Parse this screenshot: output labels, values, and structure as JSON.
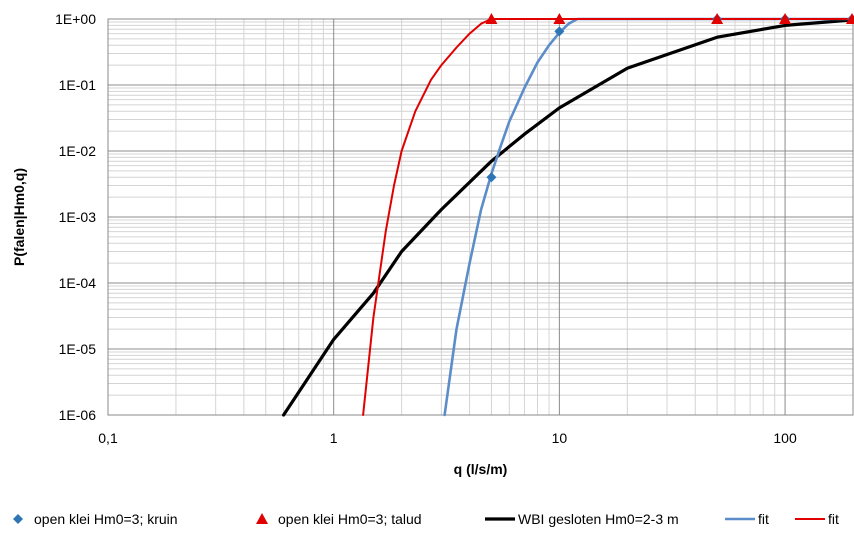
{
  "chart_data": {
    "type": "scatter",
    "title": "",
    "xlabel": "q (l/s/m)",
    "ylabel": "P(falen|Hm0,q)",
    "xscale": "log",
    "yscale": "log",
    "xlim": [
      0.1,
      200
    ],
    "ylim": [
      1e-06,
      1
    ],
    "x_tick_labels": [
      "0,1",
      "1",
      "10",
      "100"
    ],
    "x_tick_values": [
      0.1,
      1,
      10,
      100
    ],
    "y_tick_labels": [
      "1E-06",
      "1E-05",
      "1E-04",
      "1E-03",
      "1E-02",
      "1E-01",
      "1E+00"
    ],
    "y_tick_values": [
      1e-06,
      1e-05,
      0.0001,
      0.001,
      0.01,
      0.1,
      1
    ],
    "grid": true,
    "legend_position": "bottom",
    "series": [
      {
        "name": "open klei Hm0=3; kruin",
        "kind": "markers",
        "marker": "diamond",
        "color": "#2E75B6",
        "points": [
          [
            5,
            0.004
          ],
          [
            10,
            0.65
          ],
          [
            50,
            1
          ],
          [
            100,
            1
          ],
          [
            200,
            1
          ]
        ]
      },
      {
        "name": "open klei Hm0=3; talud",
        "kind": "markers",
        "marker": "triangle",
        "color": "#E00000",
        "points": [
          [
            5,
            1
          ],
          [
            10,
            1
          ],
          [
            50,
            1
          ],
          [
            100,
            1
          ],
          [
            200,
            1
          ]
        ]
      },
      {
        "name": "WBI gesloten Hm0=2-3 m",
        "kind": "line",
        "color": "#000000",
        "points": [
          [
            0.6,
            1e-06
          ],
          [
            1,
            1.4e-05
          ],
          [
            1.5,
            7e-05
          ],
          [
            2,
            0.0003
          ],
          [
            3,
            0.0013
          ],
          [
            5,
            0.007
          ],
          [
            7,
            0.018
          ],
          [
            10,
            0.045
          ],
          [
            20,
            0.18
          ],
          [
            50,
            0.53
          ],
          [
            100,
            0.8
          ],
          [
            200,
            0.97
          ]
        ]
      },
      {
        "name": "fit",
        "kind": "line",
        "color": "#5B8DC9",
        "points": [
          [
            3.1,
            1e-06
          ],
          [
            3.5,
            2e-05
          ],
          [
            4,
            0.0002
          ],
          [
            4.5,
            0.0013
          ],
          [
            5,
            0.0045
          ],
          [
            5.5,
            0.012
          ],
          [
            6,
            0.028
          ],
          [
            7,
            0.09
          ],
          [
            8,
            0.22
          ],
          [
            9,
            0.4
          ],
          [
            10,
            0.62
          ],
          [
            11,
            0.85
          ],
          [
            12,
            1
          ],
          [
            200,
            1
          ]
        ]
      },
      {
        "name": "fit",
        "kind": "line",
        "color": "#E00000",
        "points": [
          [
            1.35,
            1e-06
          ],
          [
            1.5,
            3e-05
          ],
          [
            1.7,
            0.0006
          ],
          [
            1.85,
            0.003
          ],
          [
            2,
            0.01
          ],
          [
            2.3,
            0.04
          ],
          [
            2.7,
            0.12
          ],
          [
            3,
            0.2
          ],
          [
            3.5,
            0.37
          ],
          [
            4,
            0.6
          ],
          [
            4.5,
            0.85
          ],
          [
            5,
            1
          ],
          [
            200,
            1
          ]
        ]
      }
    ]
  }
}
